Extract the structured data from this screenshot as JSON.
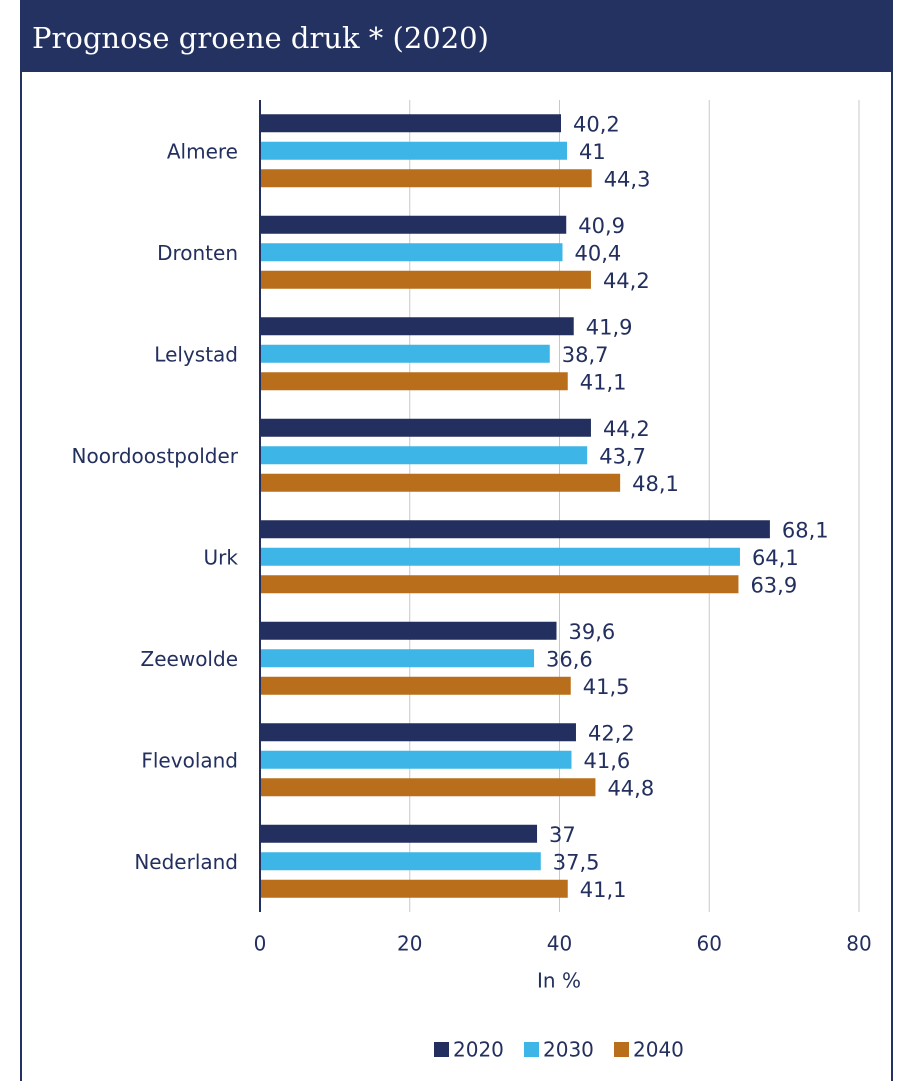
{
  "chart_data": {
    "type": "hbar",
    "title": "Prognose groene druk * (2020)",
    "x_label": "In %",
    "categories": [
      "Almere",
      "Dronten",
      "Lelystad",
      "Noordoostpolder",
      "Urk",
      "Zeewolde",
      "Flevoland",
      "Nederland"
    ],
    "series": [
      {
        "name": "2020",
        "color": "#232f5e",
        "values": [
          40.2,
          40.9,
          41.9,
          44.2,
          68.1,
          39.6,
          42.2,
          37
        ],
        "value_labels": [
          "40,2",
          "40,9",
          "41,9",
          "44,2",
          "68,1",
          "39,6",
          "42,2",
          "37"
        ]
      },
      {
        "name": "2030",
        "color": "#3db5e6",
        "values": [
          41,
          40.4,
          38.7,
          43.7,
          64.1,
          36.6,
          41.6,
          37.5
        ],
        "value_labels": [
          "41",
          "40,4",
          "38,7",
          "43,7",
          "64,1",
          "36,6",
          "41,6",
          "37,5"
        ]
      },
      {
        "name": "2040",
        "color": "#b86e1a",
        "values": [
          44.3,
          44.2,
          41.1,
          48.1,
          63.9,
          41.5,
          44.8,
          41.1
        ],
        "value_labels": [
          "44,3",
          "44,2",
          "41,1",
          "48,1",
          "63,9",
          "41,5",
          "44,8",
          "41,1"
        ]
      }
    ],
    "xlim": [
      0,
      80
    ],
    "xticks": [
      0,
      20,
      40,
      60,
      80
    ],
    "grid": true,
    "legend": "bottom"
  }
}
